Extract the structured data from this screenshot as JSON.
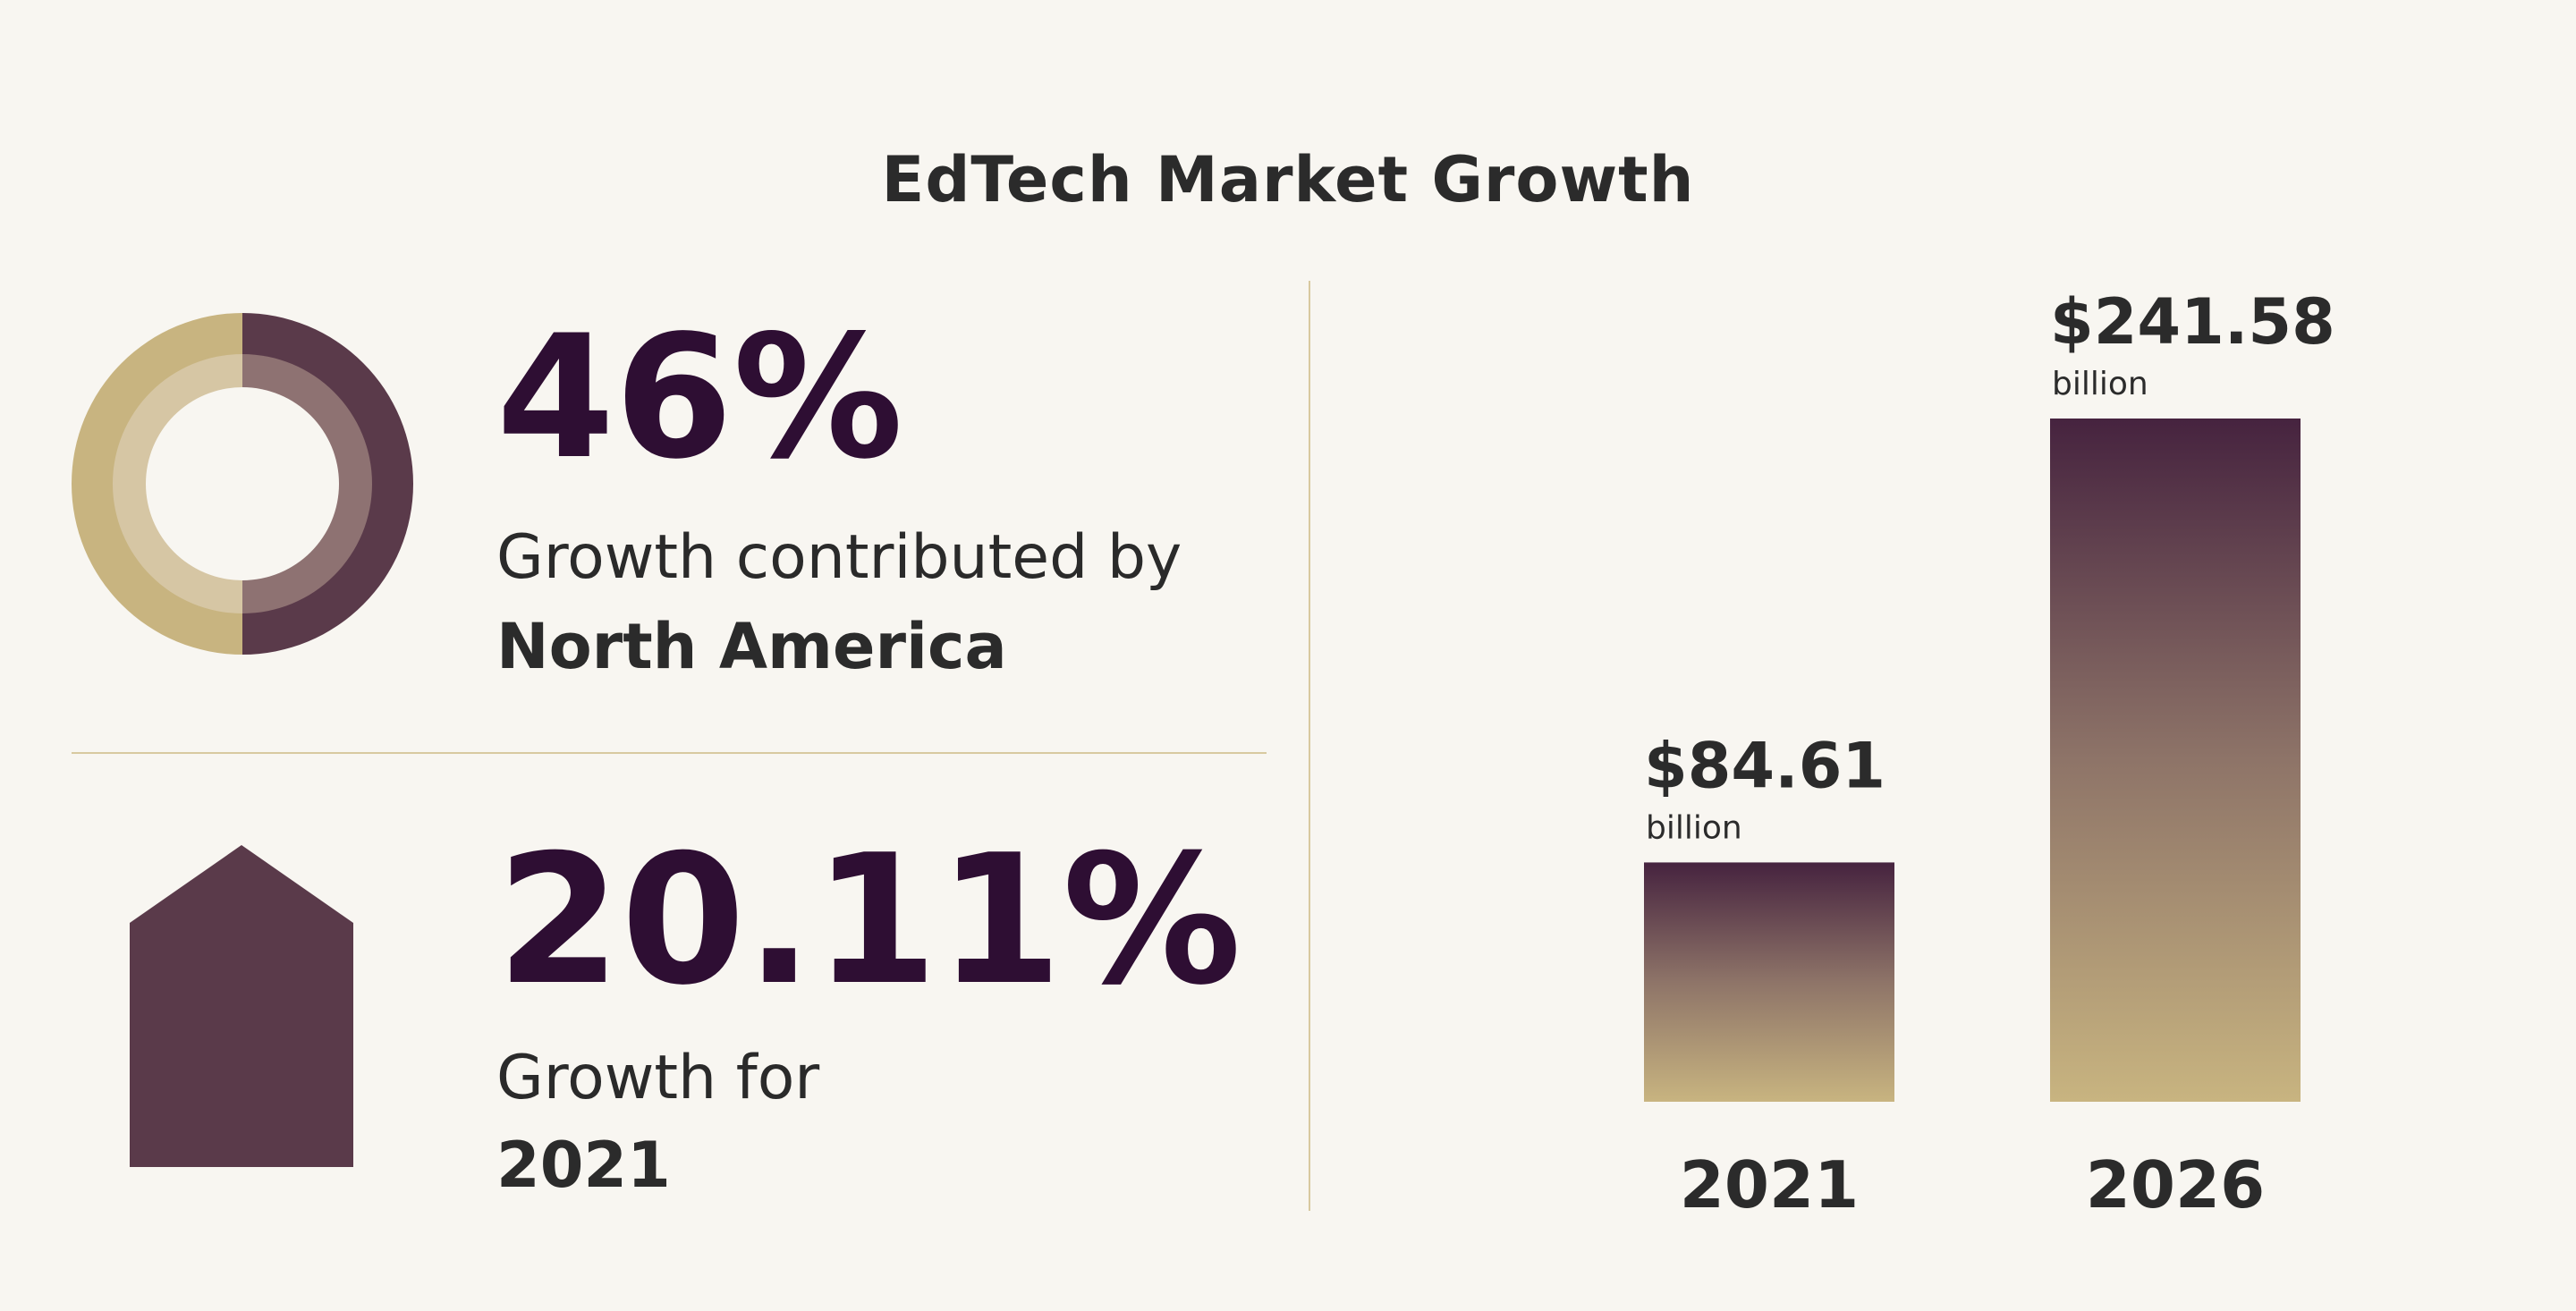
{
  "title": "EdTech Market Growth",
  "colors": {
    "plum": "#5a3a4a",
    "plum_dark": "#46233f",
    "gold": "#c8b480",
    "gold_light": "#d6c6a4",
    "plum_light": "#8e7272",
    "text_dark": "#2e0e33"
  },
  "stat_region": {
    "value": "46%",
    "label": "Growth contributed by",
    "strong": "North America",
    "share": 0.46,
    "icon": "donut-chart-icon"
  },
  "stat_growth": {
    "value": "20.11%",
    "label": "Growth for",
    "strong": "2021",
    "icon": "house-icon"
  },
  "chart_data": {
    "type": "bar",
    "title": "",
    "categories": [
      "2021",
      "2026"
    ],
    "values": [
      84.61,
      241.58
    ],
    "value_labels": [
      "$84.61",
      "$241.58"
    ],
    "unit": "billion",
    "xlabel": "",
    "ylabel": "",
    "grid": false,
    "legend": "none"
  }
}
